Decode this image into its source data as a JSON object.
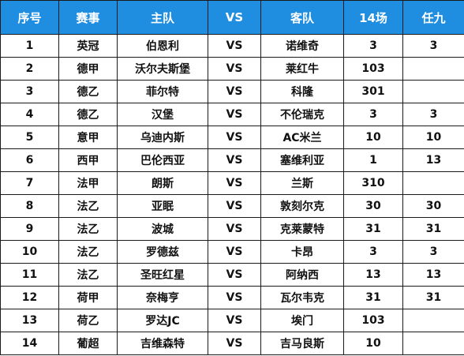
{
  "headers": [
    "序号",
    "赛事",
    "主队",
    "VS",
    "客队",
    "14场",
    "任九"
  ],
  "rows": [
    {
      "no": "1",
      "league": "英冠",
      "home": "伯恩利",
      "vs": "VS",
      "away": "诺维奇",
      "p14": "3",
      "r9": "3"
    },
    {
      "no": "2",
      "league": "德甲",
      "home": "沃尔夫斯堡",
      "vs": "VS",
      "away": "莱红牛",
      "p14": "103",
      "r9": ""
    },
    {
      "no": "3",
      "league": "德乙",
      "home": "菲尔特",
      "vs": "VS",
      "away": "科隆",
      "p14": "301",
      "r9": ""
    },
    {
      "no": "4",
      "league": "德乙",
      "home": "汉堡",
      "vs": "VS",
      "away": "不伦瑞克",
      "p14": "3",
      "r9": "3"
    },
    {
      "no": "5",
      "league": "意甲",
      "home": "乌迪内斯",
      "vs": "VS",
      "away": "AC米兰",
      "p14": "10",
      "r9": "10"
    },
    {
      "no": "6",
      "league": "西甲",
      "home": "巴伦西亚",
      "vs": "VS",
      "away": "塞维利亚",
      "p14": "1",
      "r9": "13"
    },
    {
      "no": "7",
      "league": "法甲",
      "home": "朗斯",
      "vs": "VS",
      "away": "兰斯",
      "p14": "310",
      "r9": ""
    },
    {
      "no": "8",
      "league": "法乙",
      "home": "亚眠",
      "vs": "VS",
      "away": "敦刻尔克",
      "p14": "30",
      "r9": "30"
    },
    {
      "no": "9",
      "league": "法乙",
      "home": "波城",
      "vs": "VS",
      "away": "克莱蒙特",
      "p14": "31",
      "r9": "31"
    },
    {
      "no": "10",
      "league": "法乙",
      "home": "罗德兹",
      "vs": "VS",
      "away": "卡昂",
      "p14": "3",
      "r9": "3"
    },
    {
      "no": "11",
      "league": "法乙",
      "home": "圣旺红星",
      "vs": "VS",
      "away": "阿纳西",
      "p14": "13",
      "r9": "13"
    },
    {
      "no": "12",
      "league": "荷甲",
      "home": "奈梅亨",
      "vs": "VS",
      "away": "瓦尔韦克",
      "p14": "31",
      "r9": "31"
    },
    {
      "no": "13",
      "league": "荷乙",
      "home": "罗达JC",
      "vs": "VS",
      "away": "埃门",
      "p14": "103",
      "r9": ""
    },
    {
      "no": "14",
      "league": "葡超",
      "home": "吉维森特",
      "vs": "VS",
      "away": "吉马良斯",
      "p14": "10",
      "r9": ""
    }
  ],
  "colors": {
    "header_background": "#1f8de0",
    "header_text": "#ffffff",
    "border": "#1a1a1a",
    "body_text": "#111111"
  }
}
